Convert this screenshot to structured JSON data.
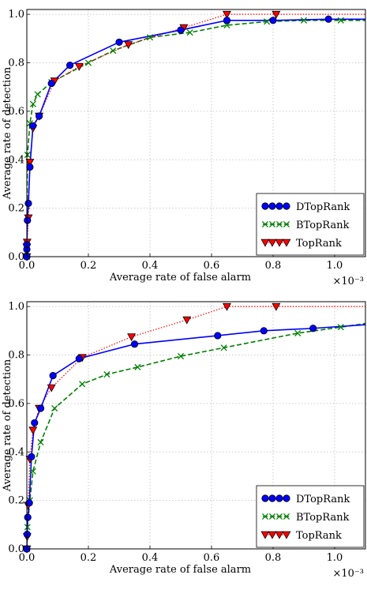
{
  "chart_data": [
    {
      "type": "line",
      "xlabel": "Average rate of false alarm",
      "ylabel": "Average rate of detection",
      "x_multiplier": "×10⁻³",
      "xlim": [
        0,
        1.1
      ],
      "ylim": [
        0,
        1.02
      ],
      "xticks": [
        "0.0",
        "0.2",
        "0.4",
        "0.6",
        "0.8",
        "1.0"
      ],
      "yticks": [
        "0.0",
        "0.2",
        "0.4",
        "0.6",
        "0.8",
        "1.0"
      ],
      "grid": true,
      "legend_position": "lower-right",
      "series": [
        {
          "name": "DTopRank",
          "color": "#0000ff",
          "line_style": "solid",
          "marker": "circle",
          "x": [
            0,
            0,
            0,
            0.002,
            0.005,
            0.01,
            0.02,
            0.04,
            0.08,
            0.14,
            0.3,
            0.5,
            0.65,
            0.8,
            0.98,
            1.1
          ],
          "y": [
            0,
            0.03,
            0.05,
            0.15,
            0.22,
            0.37,
            0.54,
            0.58,
            0.715,
            0.79,
            0.885,
            0.935,
            0.975,
            0.975,
            0.98,
            0.98
          ]
        },
        {
          "name": "BTopRank",
          "color": "#008000",
          "line_style": "dashed",
          "marker": "x",
          "x": [
            0,
            0,
            0.002,
            0.01,
            0.02,
            0.035,
            0.08,
            0.2,
            0.28,
            0.4,
            0.53,
            0.65,
            0.78,
            0.9,
            1.02,
            1.1
          ],
          "y": [
            0,
            0.02,
            0.42,
            0.55,
            0.63,
            0.67,
            0.72,
            0.8,
            0.85,
            0.905,
            0.925,
            0.955,
            0.97,
            0.975,
            0.975,
            0.975
          ]
        },
        {
          "name": "TopRank",
          "color": "#ff0000",
          "line_style": "dotted",
          "marker": "triangle-down",
          "x": [
            0,
            0,
            0.001,
            0.005,
            0.01,
            0.02,
            0.04,
            0.09,
            0.17,
            0.33,
            0.51,
            0.65,
            0.81,
            1.1
          ],
          "y": [
            0,
            0.04,
            0.06,
            0.16,
            0.39,
            0.53,
            0.58,
            0.725,
            0.785,
            0.875,
            0.945,
            1.0,
            1.0,
            1.0
          ]
        }
      ]
    },
    {
      "type": "line",
      "xlabel": "Average rate of false alarm",
      "ylabel": "Average rate of detection",
      "x_multiplier": "×10⁻³",
      "xlim": [
        0,
        1.1
      ],
      "ylim": [
        0,
        1.02
      ],
      "xticks": [
        "0.0",
        "0.2",
        "0.4",
        "0.6",
        "0.8",
        "1.0"
      ],
      "yticks": [
        "0.0",
        "0.2",
        "0.4",
        "0.6",
        "0.8",
        "1.0"
      ],
      "grid": true,
      "legend_position": "lower-right",
      "series": [
        {
          "name": "DTopRank",
          "color": "#0000ff",
          "line_style": "solid",
          "marker": "circle",
          "x": [
            0,
            0.001,
            0.003,
            0.008,
            0.015,
            0.025,
            0.045,
            0.085,
            0.17,
            0.35,
            0.62,
            0.77,
            0.93,
            1.1
          ],
          "y": [
            0,
            0.06,
            0.13,
            0.19,
            0.38,
            0.52,
            0.58,
            0.715,
            0.785,
            0.845,
            0.88,
            0.9,
            0.91,
            0.925
          ]
        },
        {
          "name": "BTopRank",
          "color": "#008000",
          "line_style": "dashed",
          "marker": "x",
          "x": [
            0,
            0.002,
            0.01,
            0.02,
            0.045,
            0.09,
            0.18,
            0.26,
            0.36,
            0.5,
            0.64,
            0.88,
            1.02,
            1.1
          ],
          "y": [
            0,
            0.09,
            0.2,
            0.32,
            0.44,
            0.58,
            0.68,
            0.72,
            0.75,
            0.795,
            0.83,
            0.89,
            0.915,
            0.93
          ]
        },
        {
          "name": "TopRank",
          "color": "#ff0000",
          "line_style": "dotted",
          "marker": "triangle-down",
          "x": [
            0,
            0.001,
            0.004,
            0.01,
            0.02,
            0.04,
            0.08,
            0.18,
            0.34,
            0.52,
            0.65,
            0.81,
            1.1
          ],
          "y": [
            0,
            0.05,
            0.18,
            0.37,
            0.49,
            0.58,
            0.665,
            0.79,
            0.875,
            0.945,
            1.0,
            1.0,
            1.0
          ]
        }
      ]
    }
  ]
}
